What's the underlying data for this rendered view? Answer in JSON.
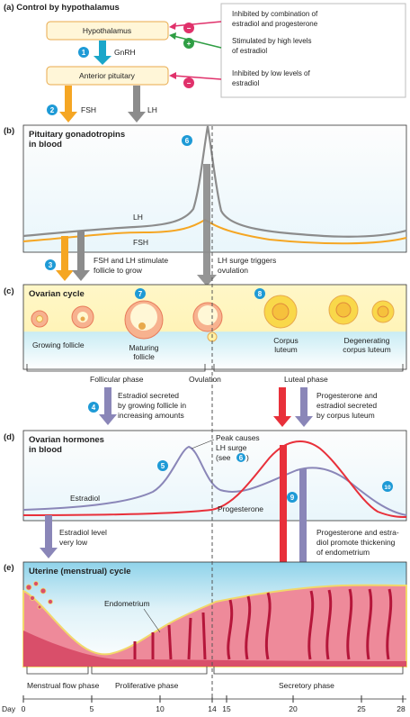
{
  "sections": {
    "a": "(a) Control by hypothalamus",
    "b_line1": "Pituitary gonadotropins",
    "b_line2": "in blood",
    "c": "Ovarian cycle",
    "d_line1": "Ovarian hormones",
    "d_line2": "in blood",
    "e": "Uterine (menstrual) cycle",
    "b_tag": "(b)",
    "c_tag": "(c)",
    "d_tag": "(d)",
    "e_tag": "(e)"
  },
  "control": {
    "hypothalamus": "Hypothalamus",
    "anterior_pituitary": "Anterior pituitary",
    "gnrh": "GnRH",
    "fsh": "FSH",
    "lh": "LH",
    "inhibit1_line1": "Inhibited by combination of",
    "inhibit1_line2": "estradiol and progesterone",
    "stim_line1": "Stimulated by high levels",
    "stim_line2": "of estradiol",
    "inhibit2_line1": "Inhibited by low levels of",
    "inhibit2_line2": "estradiol",
    "minus": "−",
    "plus": "+"
  },
  "gonadotropins": {
    "lh_label": "LH",
    "fsh_label": "FSH",
    "note_stim_line1": "FSH and LH stimulate",
    "note_stim_line2": "follicle to grow",
    "note_surge_line1": "LH surge triggers",
    "note_surge_line2": "ovulation"
  },
  "ovarian": {
    "growing": "Growing follicle",
    "maturing_line1": "Maturing",
    "maturing_line2": "follicle",
    "corpus_line1": "Corpus",
    "corpus_line2": "luteum",
    "degen_line1": "Degenerating",
    "degen_line2": "corpus luteum",
    "follicular_phase": "Follicular phase",
    "ovulation": "Ovulation",
    "luteal_phase": "Luteal phase",
    "estradiol_note_line1": "Estradiol secreted",
    "estradiol_note_line2": "by growing follicle in",
    "estradiol_note_line3": "increasing amounts",
    "prog_note_line1": "Progesterone and",
    "prog_note_line2": "estradiol secreted",
    "prog_note_line3": "by corpus luteum"
  },
  "hormones": {
    "estradiol": "Estradiol",
    "progesterone": "Progesterone",
    "peak_line1": "Peak causes",
    "peak_line2": "LH surge",
    "peak_line3": "(see",
    "peak_close": ")",
    "est_low_line1": "Estradiol level",
    "est_low_line2": "very low",
    "thick_line1": "Progesterone and estra-",
    "thick_line2": "diol promote thickening",
    "thick_line3": "of endometrium"
  },
  "uterine": {
    "endometrium": "Endometrium",
    "menstrual": "Menstrual flow phase",
    "proliferative": "Proliferative phase",
    "secretory": "Secretory phase",
    "day_label": "Day",
    "days": [
      "0",
      "5",
      "10",
      "14",
      "15",
      "20",
      "25",
      "28"
    ]
  },
  "steps": [
    "1",
    "2",
    "3",
    "4",
    "5",
    "6",
    "7",
    "8",
    "9",
    "10"
  ],
  "colors": {
    "blue_step": "#1e9ad6",
    "orange": "#f5a623",
    "gray_lh": "#8c8c8c",
    "red": "#e8303a",
    "purple": "#8a86b8",
    "green": "#2f9e44",
    "pink": "#e0316b"
  }
}
